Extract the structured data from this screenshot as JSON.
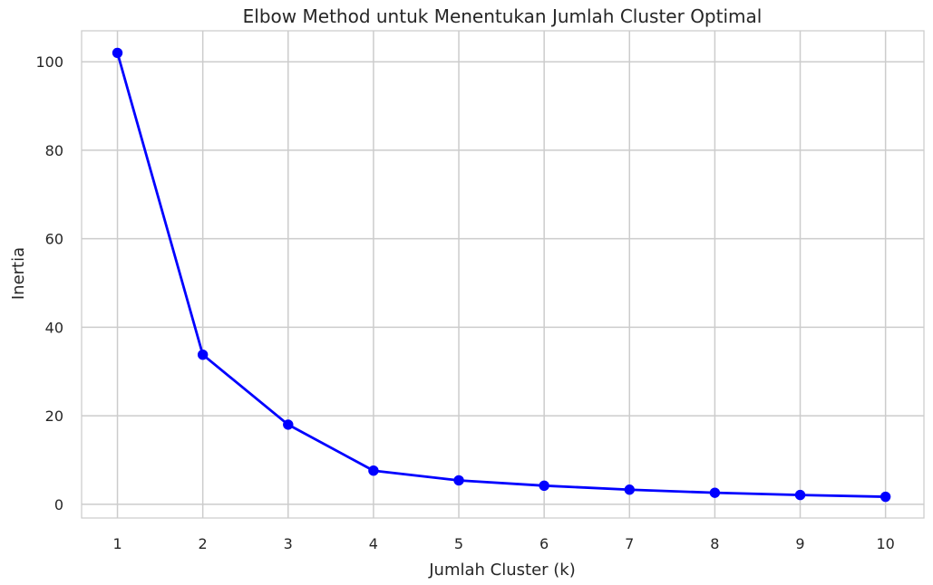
{
  "colors": {
    "line": "#0000ff",
    "marker": "#0000ff",
    "grid": "#cccccc",
    "frame": "#cccccc",
    "text": "#262626",
    "background": "#ffffff"
  },
  "chart_data": {
    "type": "line",
    "title": "Elbow Method untuk Menentukan Jumlah Cluster Optimal",
    "xlabel": "Jumlah Cluster (k)",
    "ylabel": "Inertia",
    "x": [
      1,
      2,
      3,
      4,
      5,
      6,
      7,
      8,
      9,
      10
    ],
    "series": [
      {
        "values": [
          102.0,
          33.8,
          18.0,
          7.6,
          5.4,
          4.2,
          3.3,
          2.6,
          2.1,
          1.7
        ],
        "marker": "circle"
      }
    ],
    "xticks": [
      "1",
      "2",
      "3",
      "4",
      "5",
      "6",
      "7",
      "8",
      "9",
      "10"
    ],
    "yticks": [
      "0",
      "20",
      "40",
      "60",
      "80",
      "100"
    ],
    "ytick_values": [
      0,
      20,
      40,
      60,
      80,
      100
    ],
    "xlim": [
      0.58,
      10.45
    ],
    "ylim": [
      -3.1,
      107.0
    ],
    "grid": true,
    "legend": false
  }
}
